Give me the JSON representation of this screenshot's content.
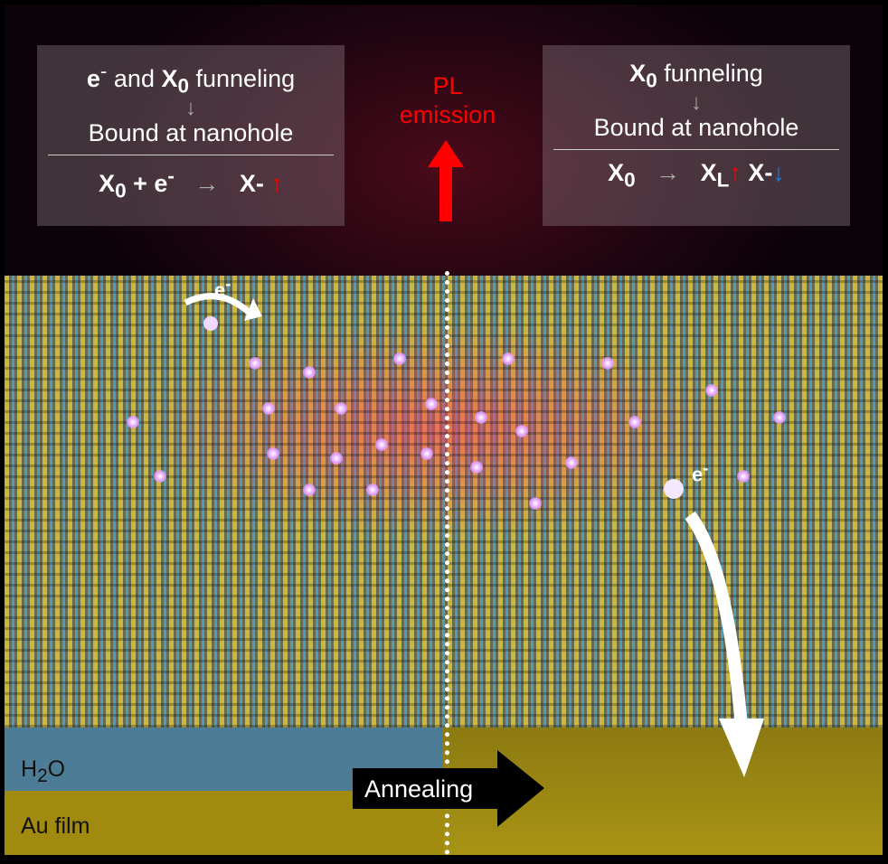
{
  "left_box": {
    "line1_a": "e",
    "line1_sup": "-",
    "line1_b": " and ",
    "line1_c": "X",
    "line1_sub": "0",
    "line1_d": " funneling",
    "arrow": "↓",
    "line2": "Bound at nanohole",
    "eq_a": "X",
    "eq_sub": "0",
    "eq_b": " + e",
    "eq_sup": "-",
    "eq_arrow": "→",
    "eq_c": "X-",
    "eq_indicator": "↑"
  },
  "right_box": {
    "line1_c": "X",
    "line1_sub": "0",
    "line1_d": " funneling",
    "arrow": "↓",
    "line2": "Bound at nanohole",
    "eq_a": "X",
    "eq_sub": "0",
    "eq_arrow": "→",
    "eq_b": "X",
    "eq_bsub": "L",
    "eq_bind": "↑",
    "eq_c": "X-",
    "eq_cind": "↓"
  },
  "pl": {
    "line1": "PL",
    "line2": "emission"
  },
  "electron_labels": [
    "e",
    "-"
  ],
  "layers": {
    "water": "H",
    "water_sub": "2",
    "water_end": "O",
    "au": "Au film"
  },
  "annealing": "Annealing",
  "colors": {
    "up": "#ff0000",
    "down": "#1a7be0",
    "water": "#4d7d96",
    "au": "#a08a10"
  }
}
